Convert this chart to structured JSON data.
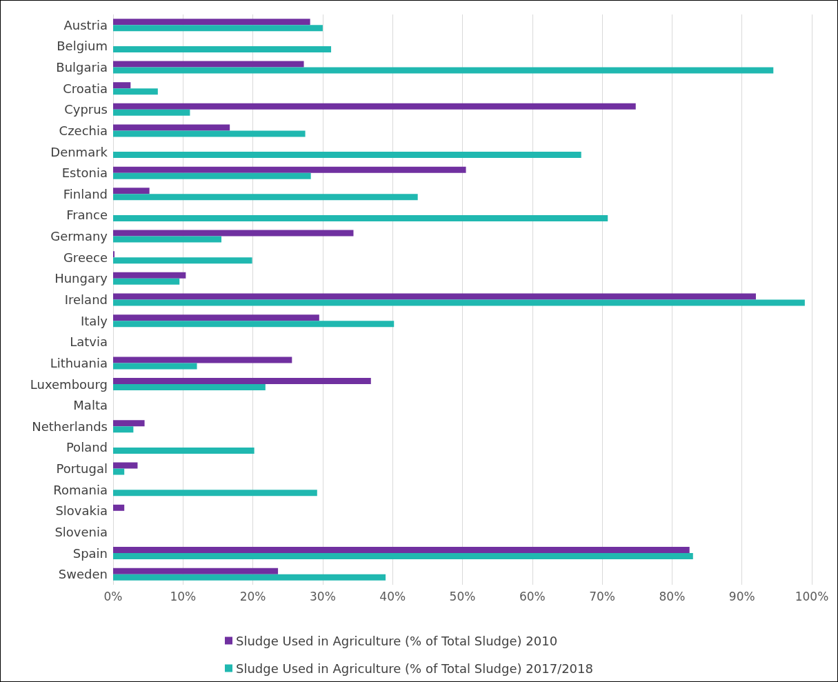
{
  "chart_data": {
    "type": "bar",
    "orientation": "horizontal",
    "categories": [
      "Austria",
      "Belgium",
      "Bulgaria",
      "Croatia",
      "Cyprus",
      "Czechia",
      "Denmark",
      "Estonia",
      "Finland",
      "France",
      "Germany",
      "Greece",
      "Hungary",
      "Ireland",
      "Italy",
      "Latvia",
      "Lithuania",
      "Luxembourg",
      "Malta",
      "Netherlands",
      "Poland",
      "Portugal",
      "Romania",
      "Slovakia",
      "Slovenia",
      "Spain",
      "Sweden"
    ],
    "series": [
      {
        "name": "Sludge Used in Agriculture (% of Total Sludge) 2010",
        "color": "#7030a0",
        "values": [
          28.2,
          null,
          27.3,
          2.5,
          74.8,
          16.7,
          null,
          50.5,
          5.2,
          null,
          34.4,
          0.2,
          10.4,
          92.0,
          29.5,
          null,
          25.6,
          36.9,
          null,
          4.5,
          null,
          3.5,
          null,
          1.6,
          null,
          82.5,
          23.6
        ]
      },
      {
        "name": "Sludge Used in Agriculture (% of Total Sludge) 2017/2018",
        "color": "#20b8b0",
        "values": [
          30.0,
          31.2,
          94.5,
          6.4,
          11.0,
          27.5,
          67.0,
          28.3,
          43.6,
          70.8,
          15.5,
          19.9,
          9.5,
          99.0,
          40.2,
          null,
          12.0,
          21.8,
          null,
          2.9,
          20.2,
          1.6,
          29.2,
          null,
          null,
          83.0,
          39.0
        ]
      }
    ],
    "xlim": [
      0,
      100
    ],
    "xticks": [
      {
        "value": 0,
        "label": "0%"
      },
      {
        "value": 10,
        "label": "10%"
      },
      {
        "value": 20,
        "label": "20%"
      },
      {
        "value": 30,
        "label": "30%"
      },
      {
        "value": 40,
        "label": "40%"
      },
      {
        "value": 50,
        "label": "50%"
      },
      {
        "value": 60,
        "label": "60%"
      },
      {
        "value": 70,
        "label": "70%"
      },
      {
        "value": 80,
        "label": "80%"
      },
      {
        "value": 90,
        "label": "90%"
      },
      {
        "value": 100,
        "label": "100%"
      }
    ],
    "grid": "x",
    "legend": "bottom"
  }
}
